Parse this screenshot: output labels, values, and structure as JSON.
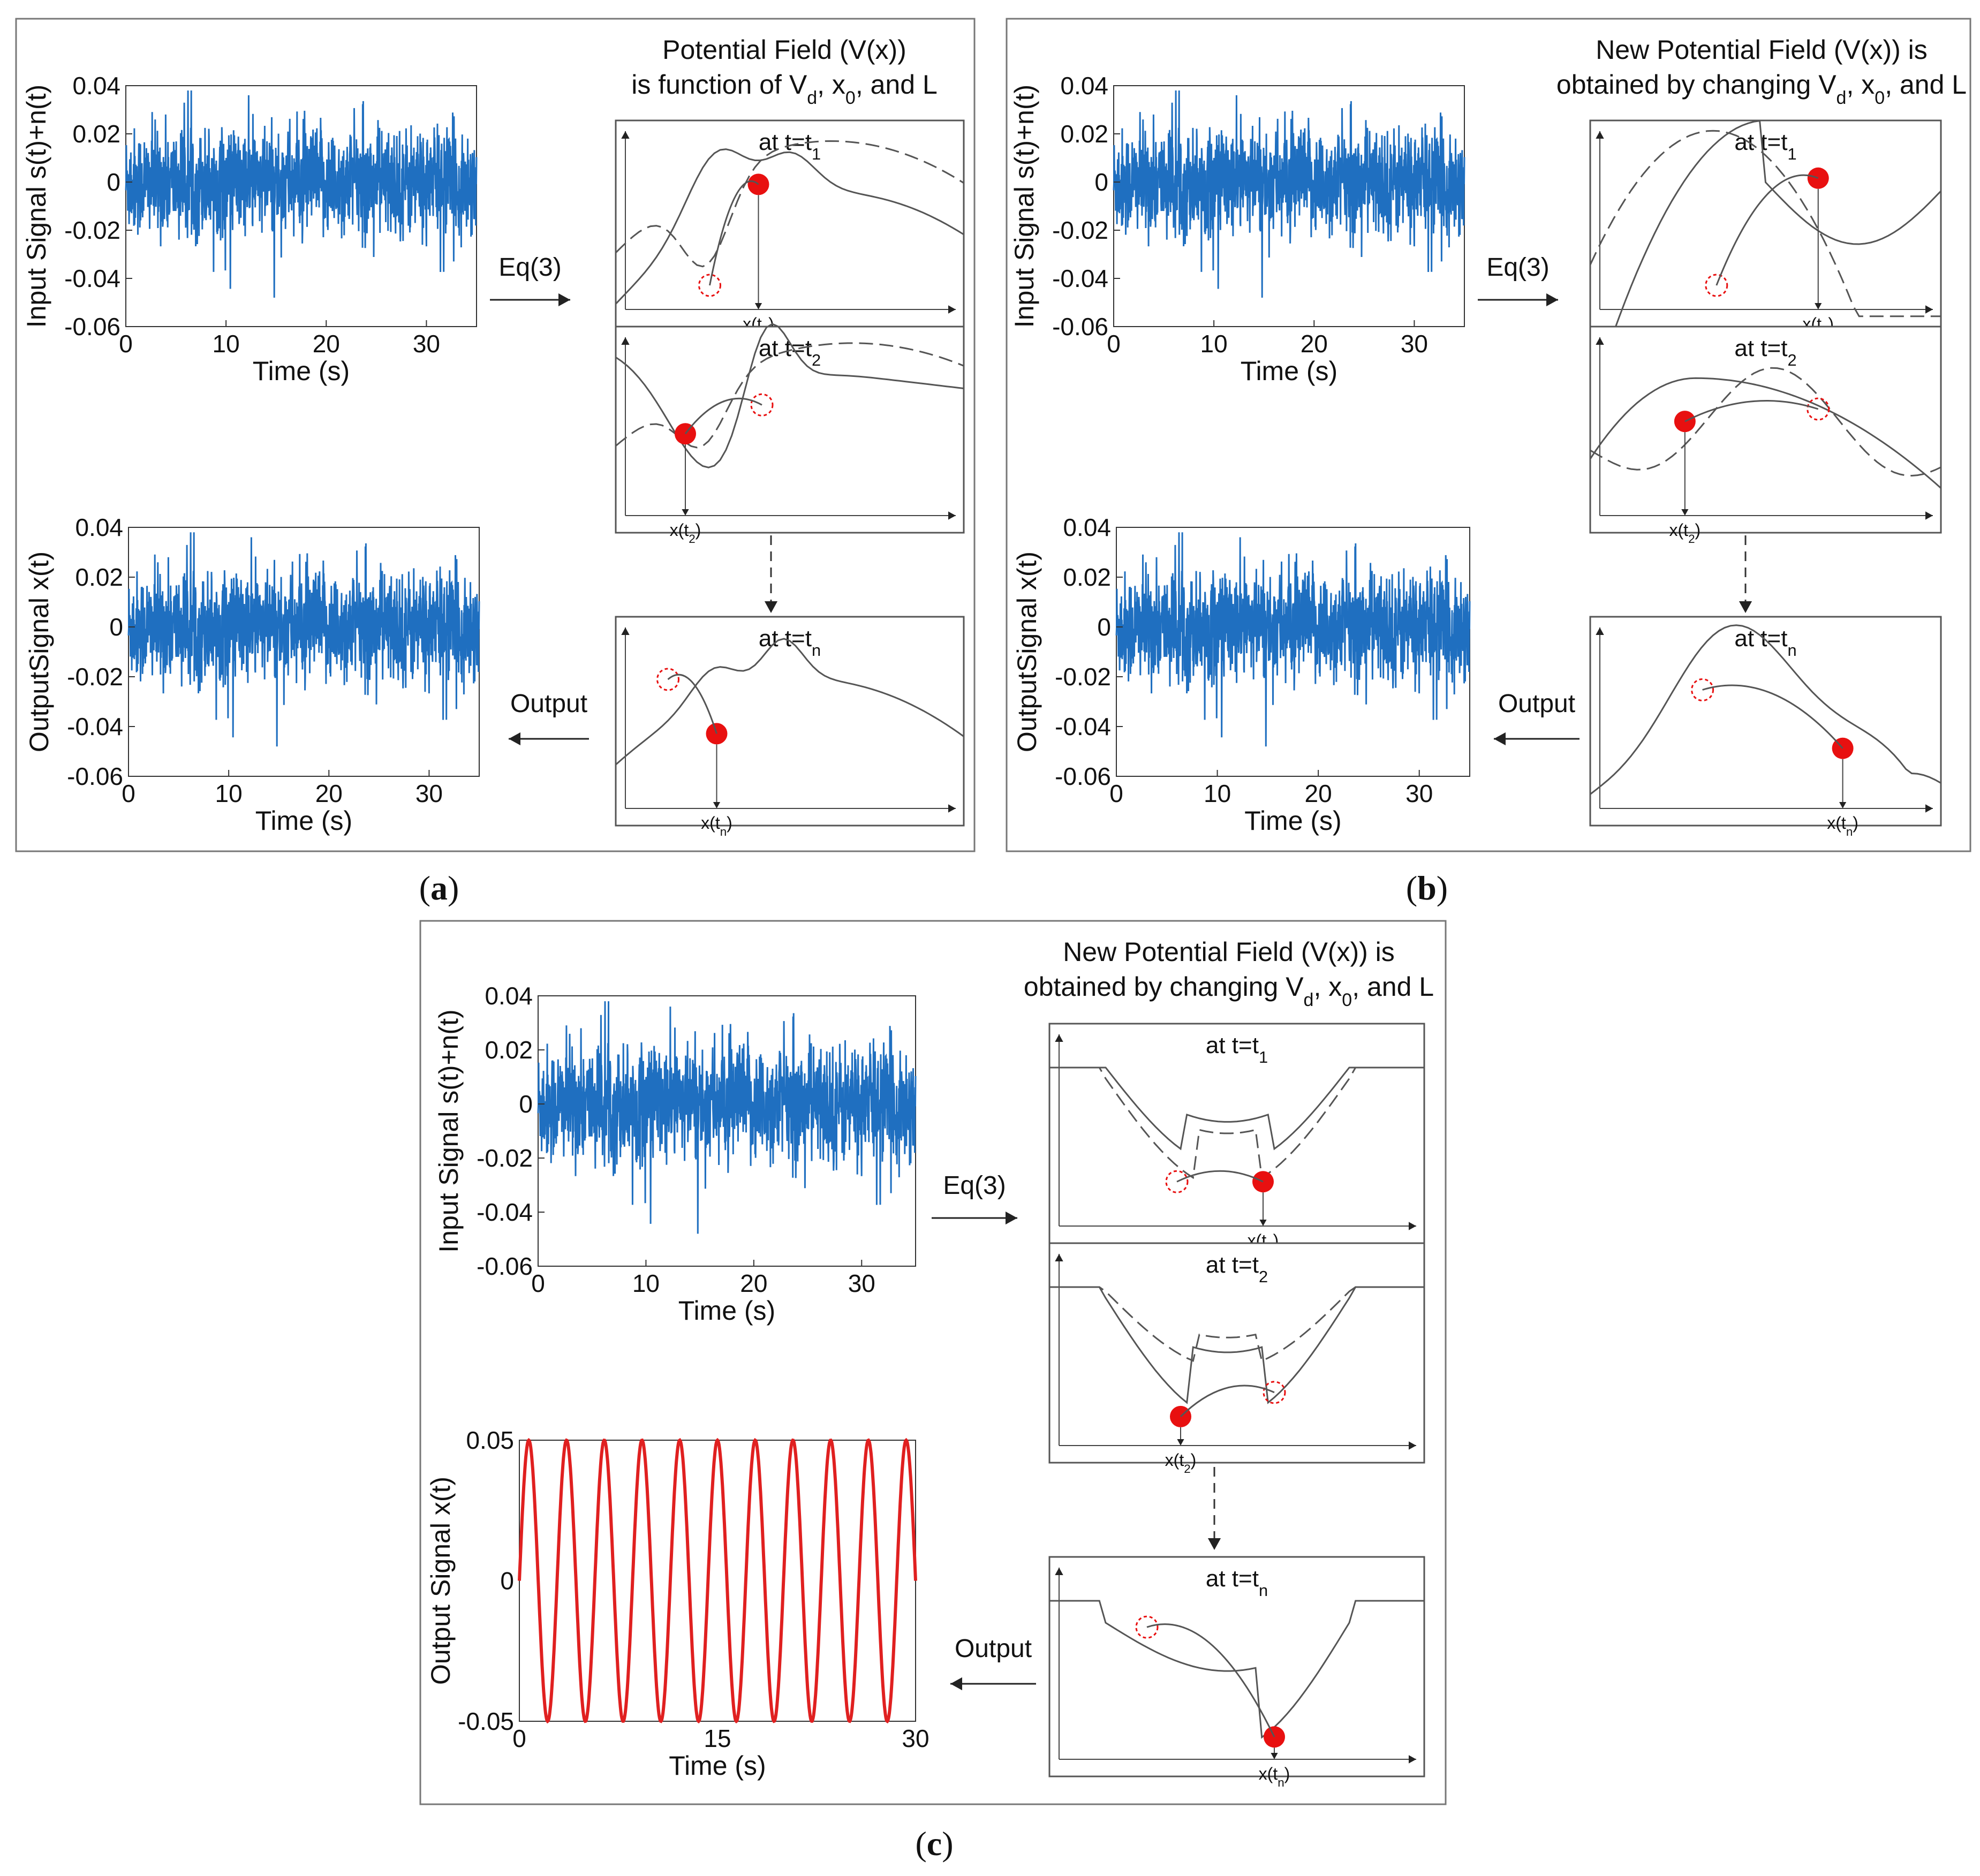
{
  "colors": {
    "signal": "#1f6fc0",
    "output_sine": "#e02020",
    "ball": "#e81010",
    "curve": "#555555"
  },
  "panels": [
    {
      "id": "a",
      "caption_open": "(",
      "caption_letter": "a",
      "caption_close": ")",
      "title_line1": "Potential Field (V(x))",
      "title_line2_pre": "is function of  V",
      "sub1": "d",
      "mid1": ", x",
      "sub2": "0",
      "post": ", and L",
      "input_ylabel": "Input Signal s(t)+n(t)",
      "output_ylabel": "OutputSignal x(t)",
      "xlabel": "Time (s)",
      "input_yticks": [
        "0.04",
        "0.02",
        "0",
        "-0.02",
        "-0.04",
        "-0.06"
      ],
      "output_yticks": [
        "0.04",
        "0.02",
        "0",
        "-0.02",
        "-0.04",
        "-0.06"
      ],
      "xticks": [
        "0",
        "10",
        "20",
        "30"
      ],
      "eq_label": "Eq(3)",
      "output_label": "Output",
      "states": [
        {
          "pre": "at t=t",
          "sub": "1",
          "xpre": "x(t",
          "xsub": "1",
          "xpost": ")"
        },
        {
          "pre": "at t=t",
          "sub": "2",
          "xpre": "x(t",
          "xsub": "2",
          "xpost": ")"
        },
        {
          "pre": "at t=t",
          "sub": "n",
          "xpre": "x(t",
          "xsub": "n",
          "xpost": ")"
        }
      ]
    },
    {
      "id": "b",
      "caption_open": "(",
      "caption_letter": "b",
      "caption_close": ")",
      "title_line1": "New Potential Field (V(x)) is",
      "title_line2_pre": "obtained by changing V",
      "sub1": "d",
      "mid1": ", x",
      "sub2": "0",
      "post": ", and L",
      "input_ylabel": "Input Signal s(t)+n(t)",
      "output_ylabel": "OutputSignal x(t)",
      "xlabel": "Time (s)",
      "input_yticks": [
        "0.04",
        "0.02",
        "0",
        "-0.02",
        "-0.04",
        "-0.06"
      ],
      "output_yticks": [
        "0.04",
        "0.02",
        "0",
        "-0.02",
        "-0.04",
        "-0.06"
      ],
      "xticks": [
        "0",
        "10",
        "20",
        "30"
      ],
      "eq_label": "Eq(3)",
      "output_label": "Output",
      "states": [
        {
          "pre": "at t=t",
          "sub": "1",
          "xpre": "x(t",
          "xsub": "1",
          "xpost": ")"
        },
        {
          "pre": "at t=t",
          "sub": "2",
          "xpre": "x(t",
          "xsub": "2",
          "xpost": ")"
        },
        {
          "pre": "at t=t",
          "sub": "n",
          "xpre": "x(t",
          "xsub": "n",
          "xpost": ")"
        }
      ]
    },
    {
      "id": "c",
      "caption_open": "(",
      "caption_letter": "c",
      "caption_close": ")",
      "title_line1": "New Potential Field (V(x)) is",
      "title_line2_pre": "obtained by changing V",
      "sub1": "d",
      "mid1": ", x",
      "sub2": "0",
      "post": ", and L",
      "input_ylabel": "Input Signal s(t)+n(t)",
      "output_ylabel": "Output Signal x(t)",
      "xlabel": "Time (s)",
      "input_yticks": [
        "0.04",
        "0.02",
        "0",
        "-0.02",
        "-0.04",
        "-0.06"
      ],
      "output_yticks": [
        "0.05",
        "0",
        "-0.05"
      ],
      "xticks": [
        "0",
        "10",
        "20",
        "30"
      ],
      "output_xticks": [
        "0",
        "15",
        "30"
      ],
      "eq_label": "Eq(3)",
      "output_label": "Output",
      "states": [
        {
          "pre": "at t=t",
          "sub": "1",
          "xpre": "x(t",
          "xsub": "1",
          "xpost": ")"
        },
        {
          "pre": "at t=t",
          "sub": "2",
          "xpre": "x(t",
          "xsub": "2",
          "xpost": ")"
        },
        {
          "pre": "at t=t",
          "sub": "n",
          "xpre": "x(t",
          "xsub": "n",
          "xpost": ")"
        }
      ]
    }
  ],
  "chart_data": [
    {
      "type": "line",
      "title": "",
      "xlabel": "Time (s)",
      "ylabel": "Input Signal s(t)+n(t)",
      "xlim": [
        0,
        35
      ],
      "ylim": [
        -0.06,
        0.04
      ],
      "series": [
        {
          "name": "noisy input",
          "description_values": {
            "mean": 0,
            "std": 0.012,
            "min": -0.048,
            "max": 0.038
          }
        }
      ]
    },
    {
      "type": "line",
      "title": "",
      "xlabel": "Time (s)",
      "ylabel": "OutputSignal x(t)",
      "xlim": [
        0,
        35
      ],
      "ylim": [
        -0.06,
        0.04
      ],
      "series": [
        {
          "name": "output (a)",
          "description_values": {
            "mean": 0,
            "std": 0.012,
            "min": -0.048,
            "max": 0.038
          }
        }
      ]
    },
    {
      "type": "line",
      "title": "",
      "xlabel": "Time (s)",
      "ylabel": "OutputSignal x(t)",
      "xlim": [
        0,
        35
      ],
      "ylim": [
        -0.06,
        0.04
      ],
      "series": [
        {
          "name": "output (b)",
          "description_values": {
            "mean": 0,
            "std": 0.012,
            "min": -0.048,
            "max": 0.038
          }
        }
      ]
    },
    {
      "type": "line",
      "title": "",
      "xlabel": "Time (s)",
      "ylabel": "Output Signal x(t)",
      "xlim": [
        0,
        30
      ],
      "ylim": [
        -0.05,
        0.05
      ],
      "series": [
        {
          "name": "recovered sine",
          "amplitude": 0.05,
          "cycles": 10.5,
          "period_s": 2.86
        }
      ]
    }
  ]
}
